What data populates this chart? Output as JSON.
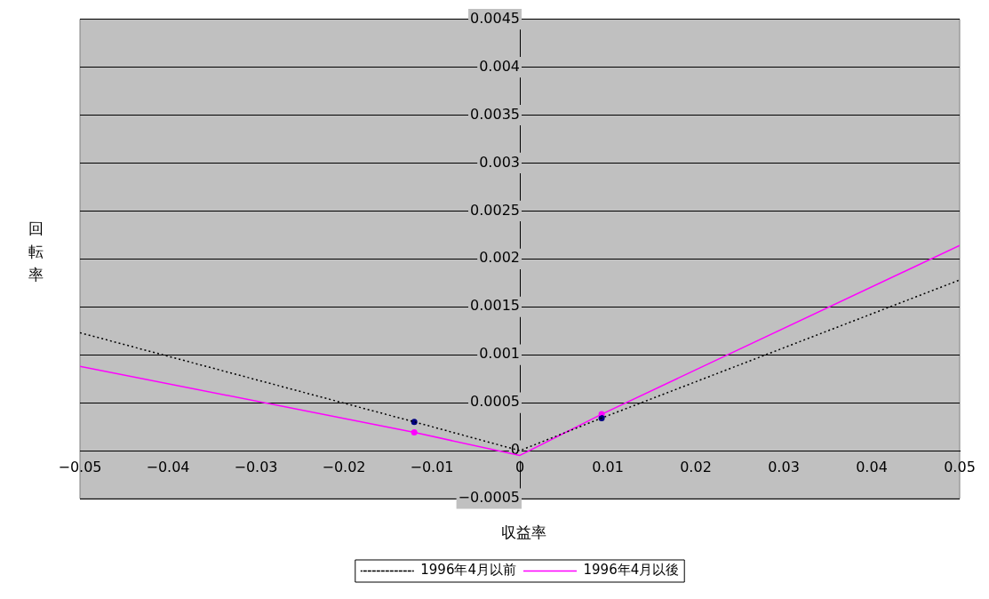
{
  "chart_data": {
    "type": "line",
    "xlabel": "収益率",
    "ylabel": "回転率",
    "xlim": [
      -0.05,
      0.05
    ],
    "ylim": [
      -0.0005,
      0.0045
    ],
    "xticks": [
      -0.05,
      -0.04,
      -0.03,
      -0.02,
      -0.01,
      0,
      0.01,
      0.02,
      0.03,
      0.04,
      0.05
    ],
    "yticks": [
      -0.0005,
      0,
      0.0005,
      0.001,
      0.0015,
      0.002,
      0.0025,
      0.003,
      0.0035,
      0.004,
      0.0045
    ],
    "grid": "y",
    "legend": "bottom",
    "series": [
      {
        "name": "1996年4月以前",
        "color": "#000000",
        "line_style": "dotted",
        "marker": "none",
        "x": [
          -0.05,
          -0.012,
          0,
          0.0093,
          0.05
        ],
        "values": [
          0.00123,
          0.0003,
          0,
          0.00034,
          0.00178
        ]
      },
      {
        "name": "1996年4月以後",
        "color": "#ff00ff",
        "line_style": "solid",
        "marker": "none",
        "x": [
          -0.05,
          -0.012,
          0,
          0.0093,
          0.05
        ],
        "values": [
          0.00088,
          0.00019,
          -5e-05,
          0.00038,
          0.00214
        ]
      },
      {
        "type": "scatter",
        "color": "#000080",
        "marker": "circle",
        "x": [
          -0.012,
          0.0093
        ],
        "values": [
          0.0003,
          0.00034
        ]
      },
      {
        "type": "scatter",
        "color": "#ff00ff",
        "marker": "circle",
        "x": [
          -0.012,
          0.0093
        ],
        "values": [
          0.00019,
          0.00038
        ]
      }
    ]
  }
}
